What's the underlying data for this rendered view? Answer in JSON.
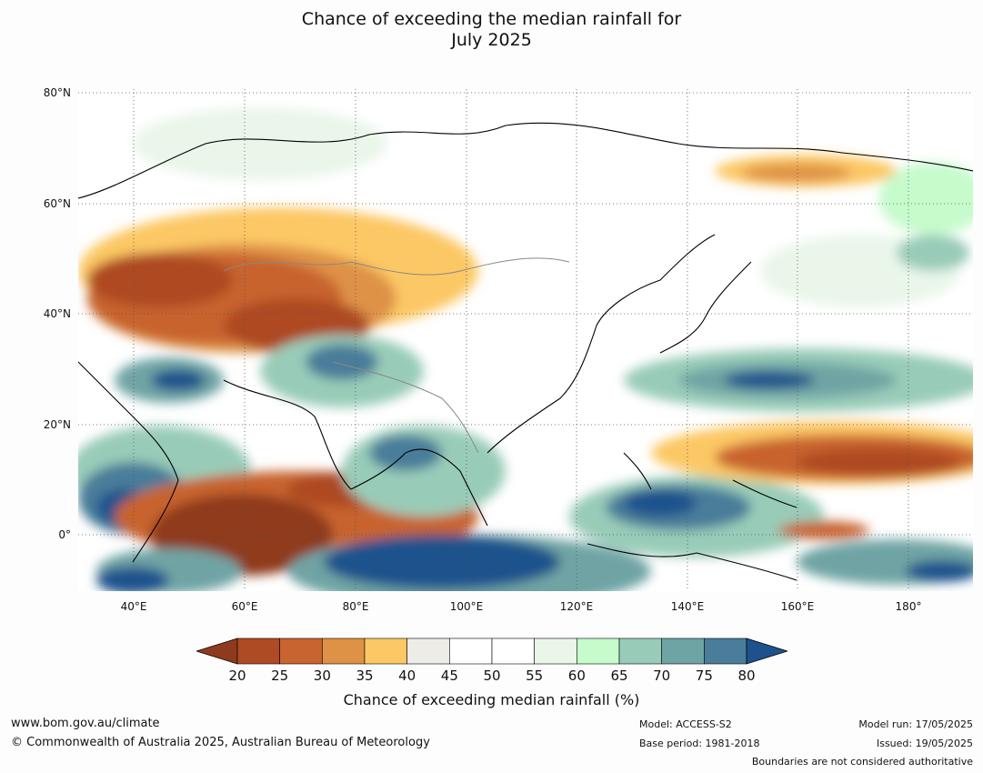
{
  "title_line1": "Chance of exceeding the median rainfall for",
  "title_line2": "July 2025",
  "lat_labels": [
    "80°N",
    "60°N",
    "40°N",
    "20°N",
    "0°"
  ],
  "lon_labels": [
    "40°E",
    "60°E",
    "80°E",
    "100°E",
    "120°E",
    "140°E",
    "160°E",
    "180°"
  ],
  "colorbar": {
    "ticks": [
      "20",
      "25",
      "30",
      "35",
      "40",
      "45",
      "50",
      "55",
      "60",
      "65",
      "70",
      "75",
      "80"
    ],
    "colors": [
      "#8f3a1e",
      "#ae4a24",
      "#c8642f",
      "#de9246",
      "#fcc865",
      "#eeece7",
      "#ffffff",
      "#ffffff",
      "#eaf6ea",
      "#c6fbcc",
      "#99ccb8",
      "#6fa4a4",
      "#4a7d9a",
      "#1d528c"
    ],
    "label": "Chance of exceeding median rainfall (%)"
  },
  "footer": {
    "website": "www.bom.gov.au/climate",
    "copyright": "© Commonwealth of Australia 2025, Australian Bureau of Meteorology",
    "model": "Model: ACCESS-S2",
    "base_period": "Base period: 1981-2018",
    "model_run": "Model run: 17/05/2025",
    "issued": "Issued: 19/05/2025",
    "disclaimer": "Boundaries are not considered authoritative"
  }
}
